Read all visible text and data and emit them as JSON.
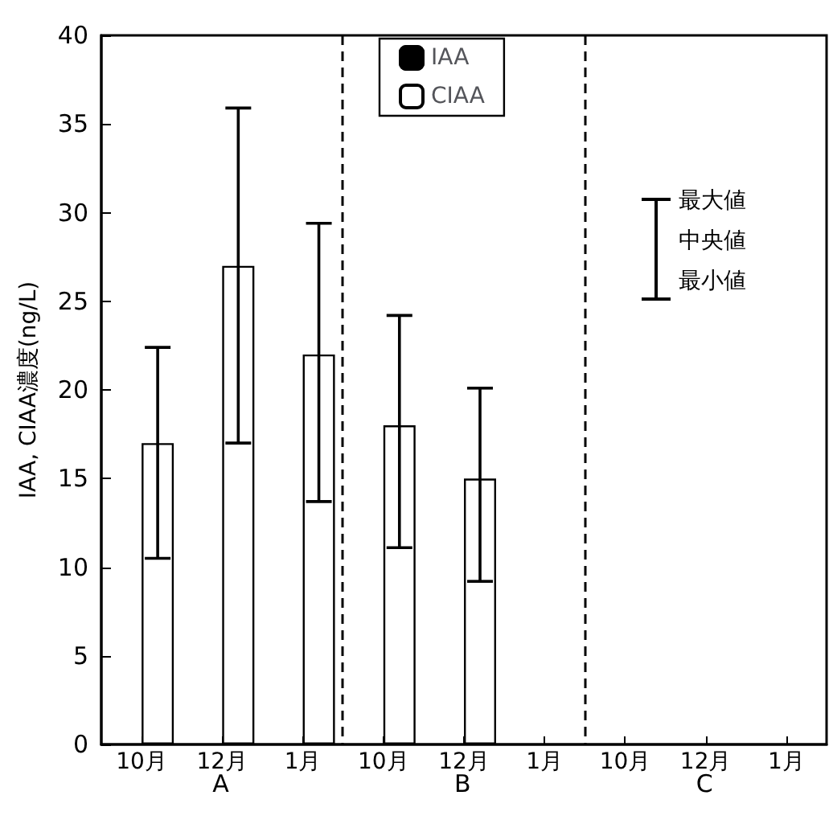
{
  "chart_data": {
    "type": "bar",
    "ylabel": "IAA, CIAA濃度(ng/L)",
    "categories": [
      "10月",
      "12月",
      "1月",
      "10月",
      "12月",
      "1月",
      "10月",
      "12月",
      "1月"
    ],
    "series": [
      {
        "name": "IAA",
        "color": "#000000",
        "values": [
          null,
          null,
          null,
          null,
          null,
          null,
          null,
          null,
          null
        ]
      },
      {
        "name": "CIAA",
        "color": "#ffffff",
        "values": [
          17,
          27,
          22,
          18,
          15,
          null,
          null,
          null,
          null
        ],
        "errors": [
          [
            10.5,
            22.4
          ],
          [
            17,
            35.9
          ],
          [
            13.7,
            29.4
          ],
          [
            11.1,
            24.2
          ],
          [
            9.2,
            20.1
          ],
          null,
          null,
          null,
          null
        ]
      }
    ],
    "ylim": [
      0,
      40
    ],
    "yticks": [
      0,
      5,
      10,
      15,
      20,
      25,
      30,
      35,
      40
    ],
    "grid": false,
    "legend": "top",
    "annotations": [
      "A",
      "B",
      "C",
      "最大値",
      "中央値",
      "最小値"
    ]
  }
}
